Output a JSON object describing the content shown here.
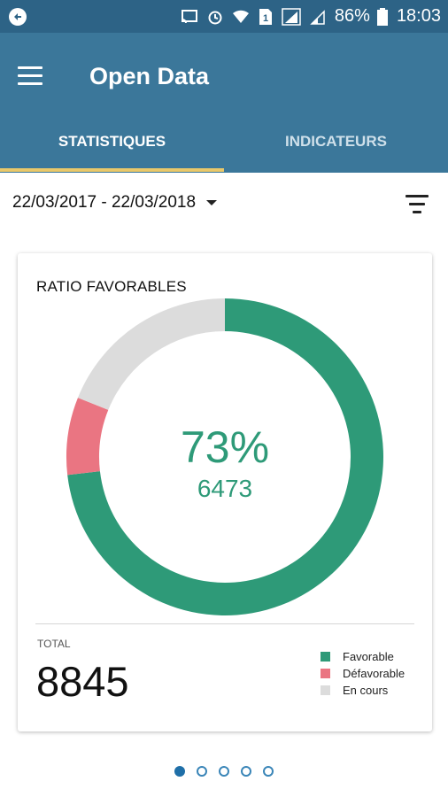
{
  "statusbar": {
    "battery_text": "86%",
    "time": "18:03",
    "icons": [
      "app-circle-icon",
      "cast-icon",
      "alarm-icon",
      "wifi-icon",
      "sim-1-icon",
      "signal-icon",
      "signal-weak-icon",
      "battery-icon"
    ]
  },
  "appbar": {
    "title": "Open Data",
    "menu_icon": "hamburger-menu-icon"
  },
  "tabs": [
    {
      "label": "STATISTIQUES",
      "active": true
    },
    {
      "label": "INDICATEURS",
      "active": false
    }
  ],
  "filter": {
    "date_range": "22/03/2017 - 22/03/2018",
    "filter_icon": "filter-list-icon"
  },
  "card": {
    "title": "RATIO FAVORABLES",
    "center_percent": "73%",
    "center_value": "6473",
    "total_label": "TOTAL",
    "total_value": "8845"
  },
  "chart_data": {
    "type": "pie",
    "variant": "donut",
    "title": "RATIO FAVORABLES",
    "series": [
      {
        "name": "Favorable",
        "value": 6473,
        "color": "#2e9a78"
      },
      {
        "name": "Défavorable",
        "value": 700,
        "color": "#ea7582"
      },
      {
        "name": "En cours",
        "value": 1672,
        "color": "#dcdcdc"
      }
    ],
    "start_angle_deg": 0,
    "legend_position": "bottom-right"
  },
  "pager": {
    "count": 5,
    "active_index": 0,
    "active_color": "#1f6fa8",
    "inactive_color": "#3b86b8"
  },
  "colors": {
    "statusbar": "#2d6386",
    "appbar": "#3b779a",
    "tab_indicator": "#e9c86a",
    "accent_green": "#2e9a78"
  }
}
